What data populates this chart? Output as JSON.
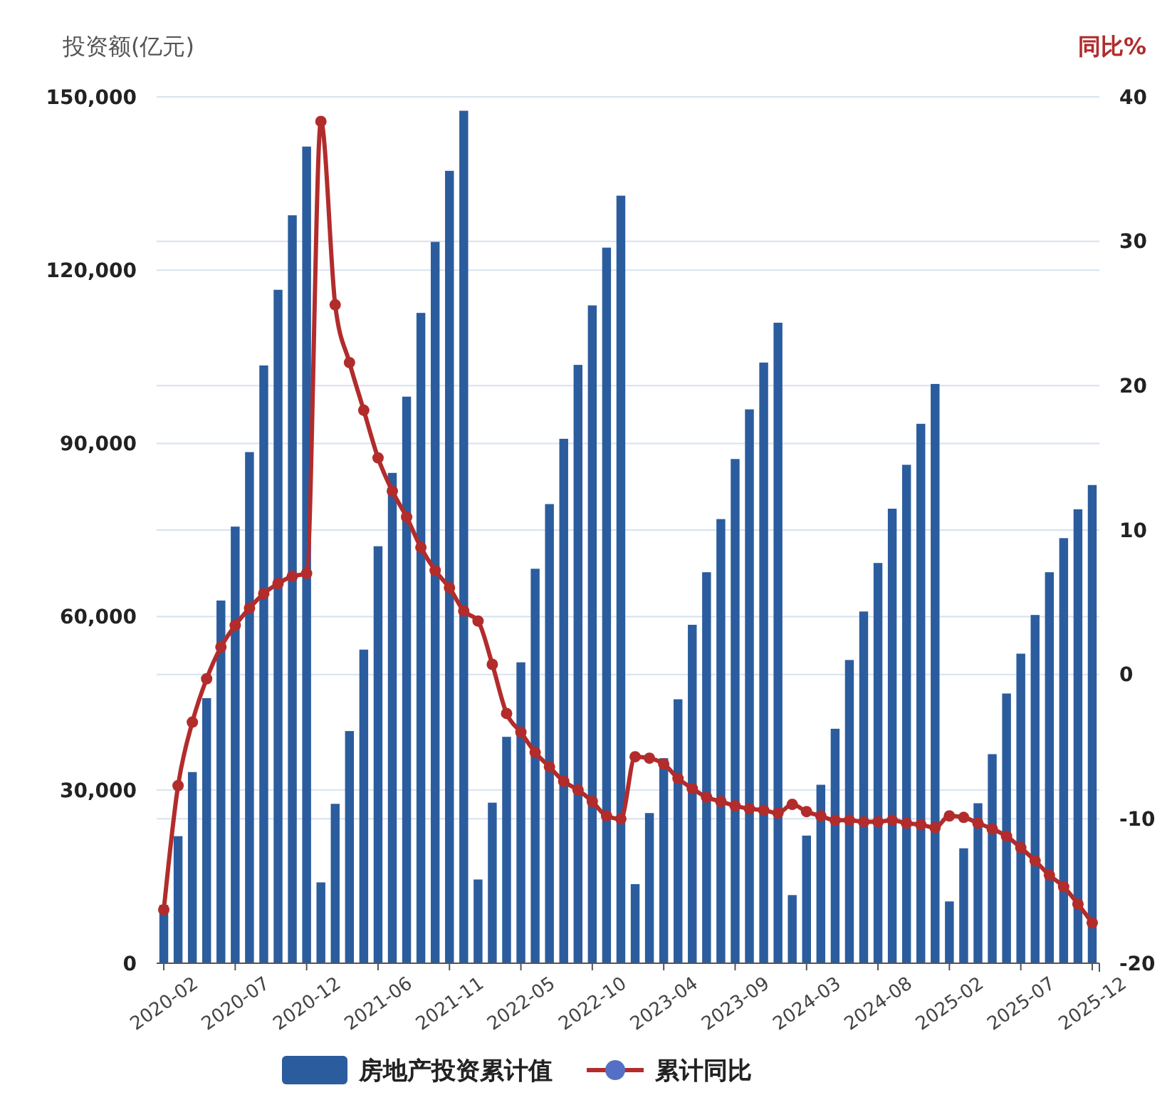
{
  "chart_data": {
    "type": "bar",
    "ylabel": "投资额(亿元)",
    "y2label": "同比%",
    "categories": [
      "2020-02",
      null,
      null,
      null,
      null,
      "2020-07",
      null,
      null,
      null,
      null,
      "2020-12",
      null,
      null,
      null,
      null,
      "2021-06",
      null,
      null,
      null,
      null,
      "2021-11",
      null,
      null,
      null,
      null,
      "2022-05",
      null,
      null,
      null,
      null,
      "2022-10",
      null,
      null,
      null,
      null,
      "2023-04",
      null,
      null,
      null,
      null,
      "2023-09",
      null,
      null,
      null,
      null,
      "2024-03",
      null,
      null,
      null,
      null,
      "2024-08",
      null,
      null,
      null,
      null,
      "2025-02",
      null,
      null,
      null,
      null,
      "2025-07",
      null,
      null,
      null,
      null,
      "2025-12"
    ],
    "series": [
      {
        "name": "房地产投资累计值",
        "color": "#2b5c9e",
        "values": [
          10100,
          22000,
          33100,
          45900,
          62800,
          75600,
          88500,
          103500,
          116600,
          129500,
          141400,
          14000,
          27600,
          40200,
          54300,
          72200,
          84900,
          98100,
          112600,
          124900,
          137200,
          147600,
          14500,
          27800,
          39200,
          52100,
          68300,
          79500,
          90800,
          103600,
          113900,
          123900,
          132900,
          13700,
          26000,
          35500,
          45700,
          58600,
          67700,
          76900,
          87300,
          95900,
          104000,
          110900,
          11800,
          22100,
          30900,
          40600,
          52500,
          60900,
          69300,
          78700,
          86300,
          93400,
          100300,
          10700,
          19900,
          27700,
          36200,
          46700,
          53600,
          60300,
          67700,
          73600,
          78600,
          82800
        ]
      },
      {
        "name": "累计同比",
        "type": "line",
        "axis": "y2",
        "color": "#b22c2c",
        "marker": "circle",
        "values": [
          -16.3,
          -7.7,
          -3.3,
          -0.3,
          1.9,
          3.4,
          4.6,
          5.6,
          6.3,
          6.8,
          7.0,
          38.3,
          25.6,
          21.6,
          18.3,
          15.0,
          12.7,
          10.9,
          8.8,
          7.2,
          6.0,
          4.4,
          3.7,
          0.7,
          -2.7,
          -4.0,
          -5.4,
          -6.4,
          -7.4,
          -8.0,
          -8.8,
          -9.8,
          -10.0,
          -5.7,
          -5.8,
          -6.2,
          -7.2,
          -7.9,
          -8.5,
          -8.8,
          -9.1,
          -9.3,
          -9.4,
          -9.6,
          -9.0,
          -9.5,
          -9.8,
          -10.1,
          -10.1,
          -10.2,
          -10.2,
          -10.1,
          -10.3,
          -10.4,
          -10.6,
          -9.8,
          -9.9,
          -10.3,
          -10.7,
          -11.2,
          -12.0,
          -12.9,
          -13.9,
          -14.7,
          -15.9,
          -17.2
        ]
      }
    ],
    "ylim": [
      0,
      150000
    ],
    "yticks": [
      {
        "value": 0,
        "label": "0"
      },
      {
        "value": 30000,
        "label": "30,000"
      },
      {
        "value": 60000,
        "label": "60,000"
      },
      {
        "value": 90000,
        "label": "90,000"
      },
      {
        "value": 120000,
        "label": "120,000"
      },
      {
        "value": 150000,
        "label": "150,000"
      }
    ],
    "y2lim": [
      -20,
      40
    ],
    "y2ticks": [
      -20,
      -10,
      0,
      10,
      20,
      30,
      40
    ],
    "grid": true,
    "legend": "bottom"
  }
}
